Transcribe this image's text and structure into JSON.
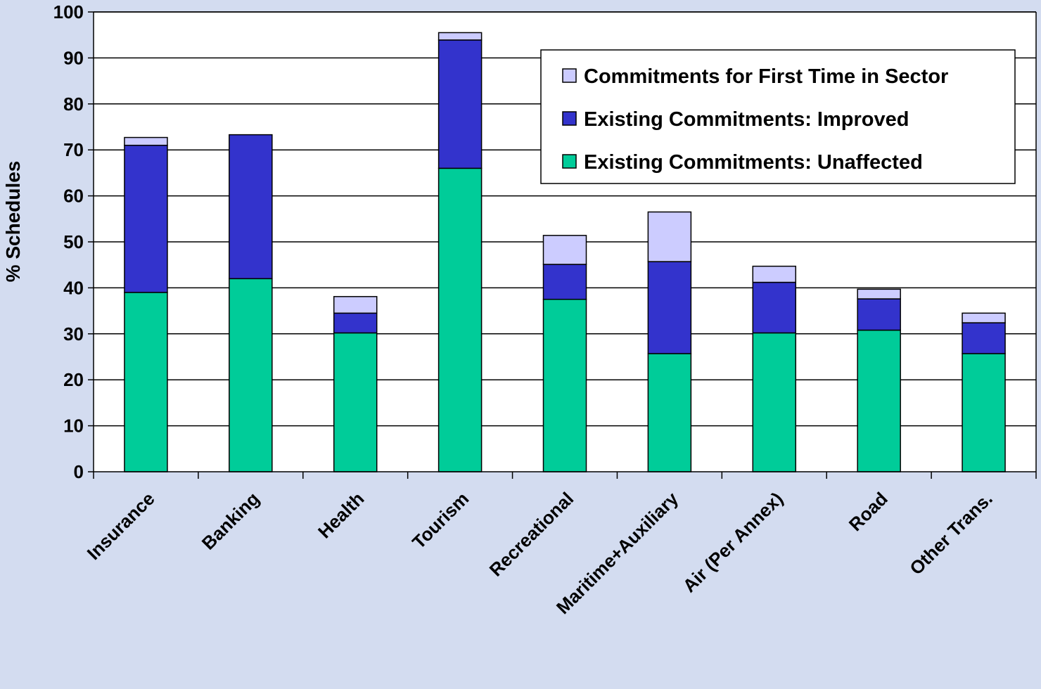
{
  "chart_data": {
    "type": "bar",
    "stacked": true,
    "title": "",
    "xlabel": "",
    "ylabel": "% Schedules",
    "ylim": [
      0,
      100
    ],
    "yticks": [
      0,
      10,
      20,
      30,
      40,
      50,
      60,
      70,
      80,
      90,
      100
    ],
    "grid": "horizontal",
    "legend_position": "top-right",
    "categories": [
      "Insurance",
      "Banking",
      "Health",
      "Tourism",
      "Recreational",
      "Maritime+Auxiliary",
      "Air (Per Annex)",
      "Road",
      "Other Trans."
    ],
    "series": [
      {
        "name": "Existing Commitments: Unaffected",
        "color": "#00cc99",
        "values": [
          39,
          42,
          30.2,
          66,
          37.5,
          25.7,
          30.2,
          30.8,
          25.7
        ]
      },
      {
        "name": "Existing Commitments: Improved",
        "color": "#3333cc",
        "values": [
          32,
          31.3,
          4.3,
          27.9,
          7.6,
          20,
          11,
          6.8,
          6.7
        ]
      },
      {
        "name": "Commitments for First Time in Sector",
        "color": "#ccccff",
        "values": [
          1.7,
          0,
          3.6,
          1.6,
          6.3,
          10.8,
          3.5,
          2.1,
          2.1
        ]
      }
    ],
    "legend_order": [
      "Commitments for First Time in Sector",
      "Existing Commitments: Improved",
      "Existing Commitments: Unaffected"
    ]
  }
}
